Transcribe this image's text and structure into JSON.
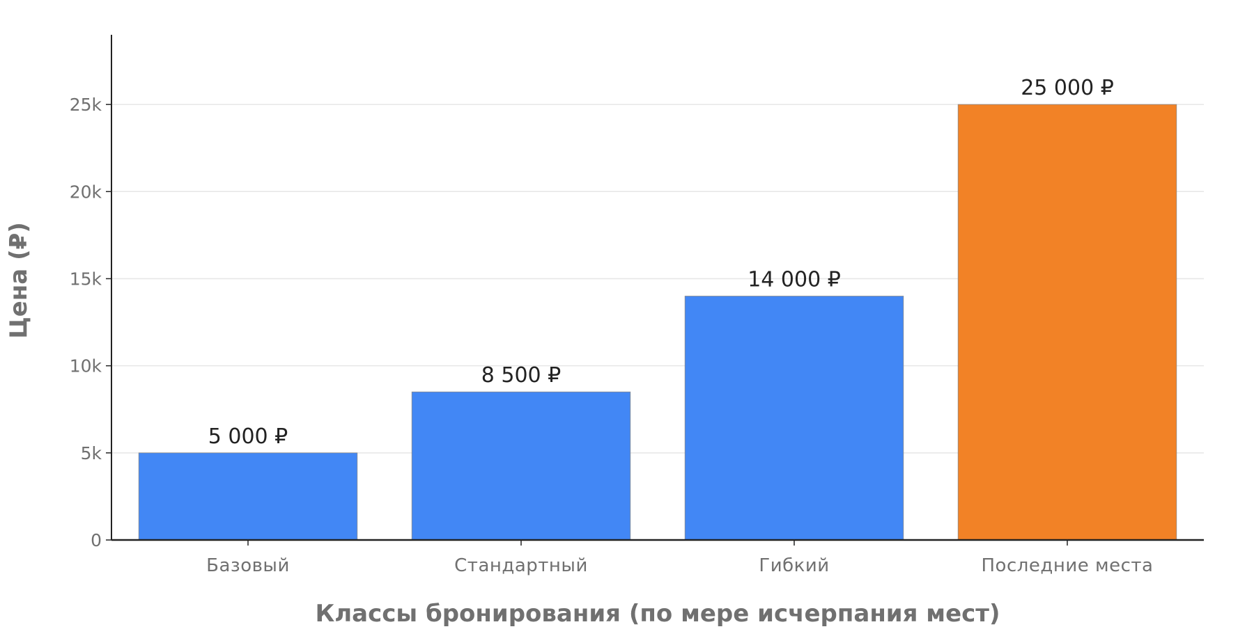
{
  "chart_data": {
    "type": "bar",
    "title": "",
    "xlabel": "Классы бронирования (по мере исчерпания мест)",
    "ylabel": "Цена (₽)",
    "categories": [
      "Базовый",
      "Стандартный",
      "Гибкий",
      "Последние места"
    ],
    "values": [
      5000,
      8500,
      14000,
      25000
    ],
    "value_labels": [
      "5 000 ₽",
      "8 500 ₽",
      "14 000 ₽",
      "25 000 ₽"
    ],
    "bar_colors": [
      "#4287f5",
      "#4287f5",
      "#4287f5",
      "#f28226"
    ],
    "ylim": [
      0,
      29000
    ],
    "yticks": [
      0,
      5000,
      10000,
      15000,
      20000,
      25000
    ],
    "ytick_labels": [
      "0",
      "5k",
      "10k",
      "15k",
      "20k",
      "25k"
    ],
    "grid": true,
    "legend": "none"
  }
}
